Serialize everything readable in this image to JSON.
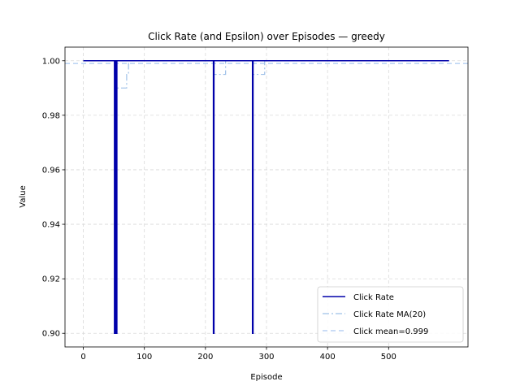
{
  "chart_data": {
    "type": "line",
    "title": "Click Rate (and Epsilon) over Episodes — greedy",
    "xlabel": "Episode",
    "ylabel": "Value",
    "xlim": [
      -30,
      630
    ],
    "ylim": [
      0.895,
      1.005
    ],
    "xticks": [
      0,
      100,
      200,
      300,
      400,
      500
    ],
    "yticks": [
      0.9,
      0.92,
      0.94,
      0.96,
      0.98,
      1.0
    ],
    "ytick_labels": [
      "0.90",
      "0.92",
      "0.94",
      "0.96",
      "0.98",
      "1.00"
    ],
    "grid": true,
    "legend_position": "lower-right",
    "colors": {
      "click_rate": "#0000aa",
      "ma": "#9ec0e8",
      "mean": "#aac8f0",
      "axis": "#000000",
      "grid": "#d9d9d9"
    },
    "series": [
      {
        "name": "Click Rate",
        "style": "solid",
        "x": [
          0,
          51,
          51,
          52,
          52,
          54,
          54,
          55,
          55,
          213,
          213,
          214,
          214,
          277,
          277,
          278,
          278,
          599
        ],
        "values": [
          1.0,
          1.0,
          0.9,
          0.9,
          1.0,
          1.0,
          0.9,
          0.9,
          1.0,
          1.0,
          0.9,
          0.9,
          1.0,
          1.0,
          0.9,
          0.9,
          1.0,
          1.0
        ]
      },
      {
        "name": "Click Rate MA(20)",
        "style": "dashdot",
        "x": [
          0,
          51,
          51,
          54,
          54,
          71,
          71,
          74,
          74,
          213,
          213,
          233,
          233,
          277,
          277,
          297,
          297,
          599
        ],
        "values": [
          1.0,
          1.0,
          0.995,
          0.995,
          0.99,
          0.99,
          0.995,
          0.995,
          1.0,
          1.0,
          0.995,
          0.995,
          1.0,
          1.0,
          0.995,
          0.995,
          1.0,
          1.0
        ]
      },
      {
        "name": "Click mean=0.999",
        "style": "dashed",
        "x": [
          -30,
          630
        ],
        "values": [
          0.999,
          0.999
        ]
      }
    ]
  }
}
